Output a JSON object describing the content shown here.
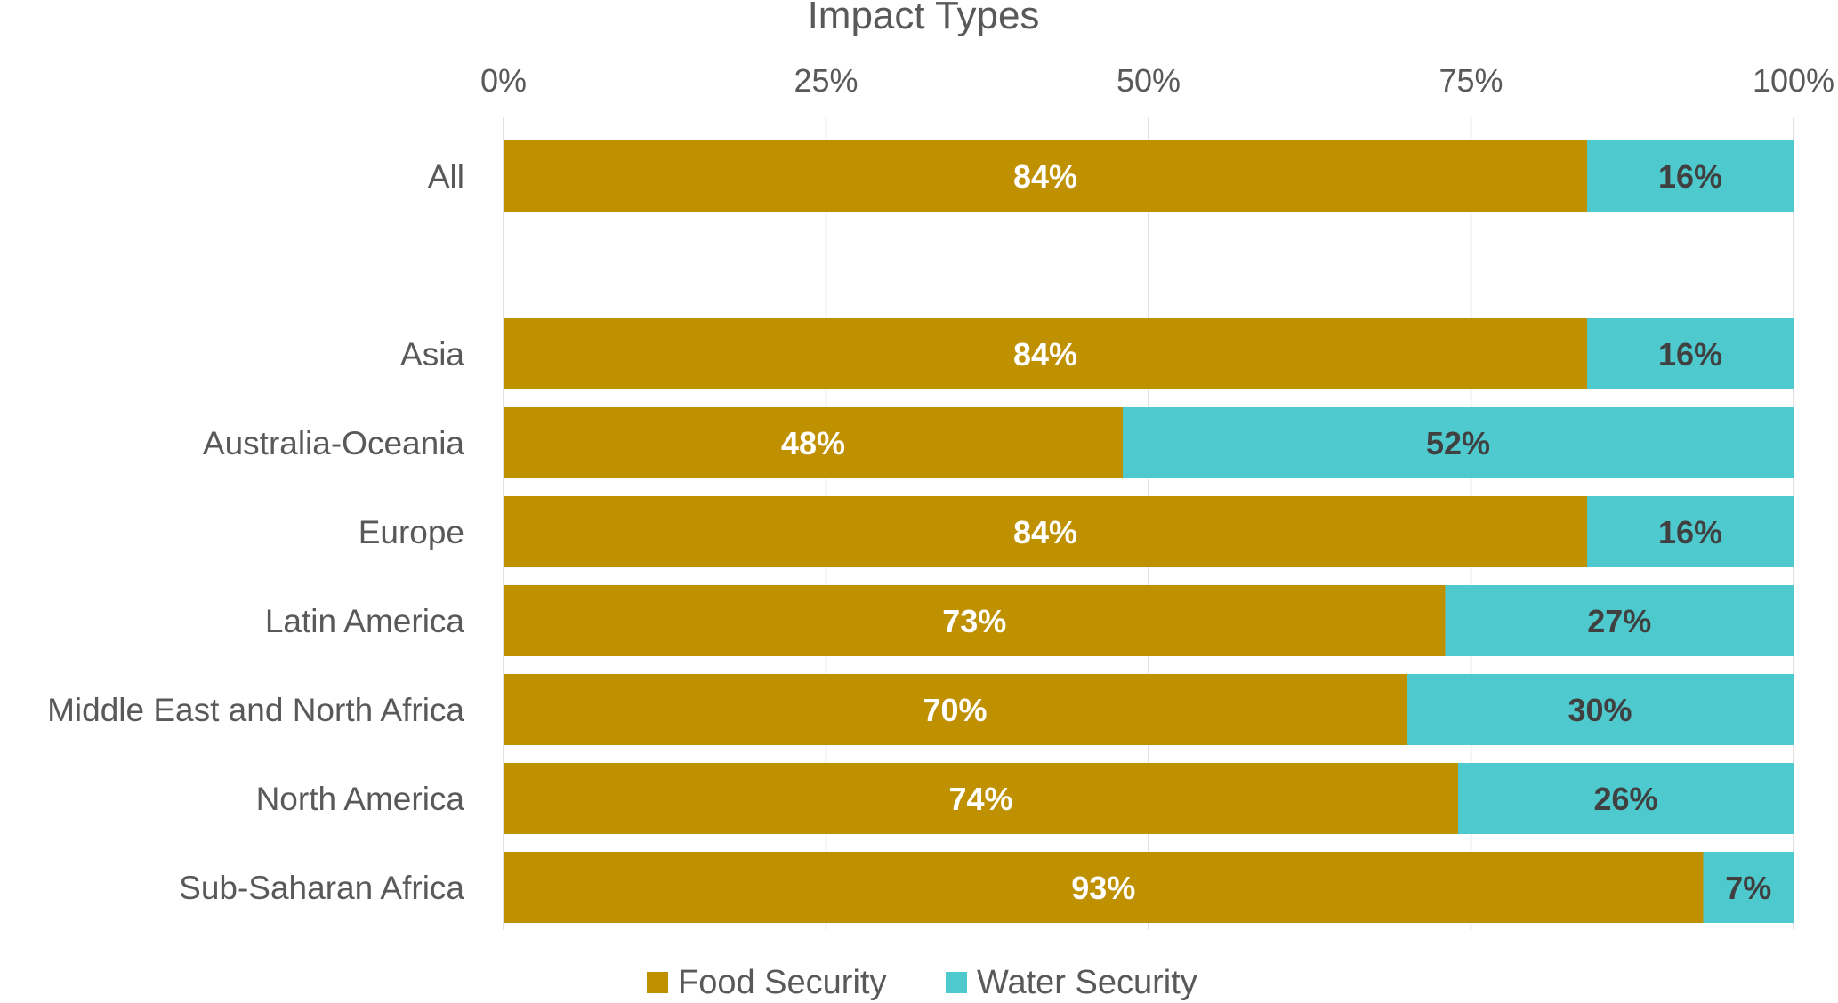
{
  "chart_data": {
    "type": "bar",
    "orientation": "horizontal",
    "stacked": true,
    "title": "Impact Types",
    "xlim": [
      0,
      100
    ],
    "x_ticks": [
      "0%",
      "25%",
      "50%",
      "75%",
      "100%"
    ],
    "x_tick_values": [
      0,
      25,
      50,
      75,
      100
    ],
    "x_axis_position": "top",
    "grid": true,
    "legend_position": "bottom",
    "categories": [
      "All",
      "",
      "Asia",
      "Australia-Oceania",
      "Europe",
      "Latin America",
      "Middle East and North Africa",
      "North America",
      "Sub-Saharan Africa"
    ],
    "series": [
      {
        "name": "Food Security",
        "color": "#BF9000",
        "label_color": "#FFFFFF",
        "values": [
          84,
          null,
          84,
          48,
          84,
          73,
          70,
          74,
          93
        ],
        "labels": [
          "84%",
          "",
          "84%",
          "48%",
          "84%",
          "73%",
          "70%",
          "74%",
          "93%"
        ]
      },
      {
        "name": "Water Security",
        "color": "#4EC9CE",
        "label_color": "#404040",
        "values": [
          16,
          null,
          16,
          52,
          16,
          27,
          30,
          26,
          7
        ],
        "labels": [
          "16%",
          "",
          "16%",
          "52%",
          "16%",
          "27%",
          "30%",
          "26%",
          "7%"
        ]
      }
    ]
  }
}
